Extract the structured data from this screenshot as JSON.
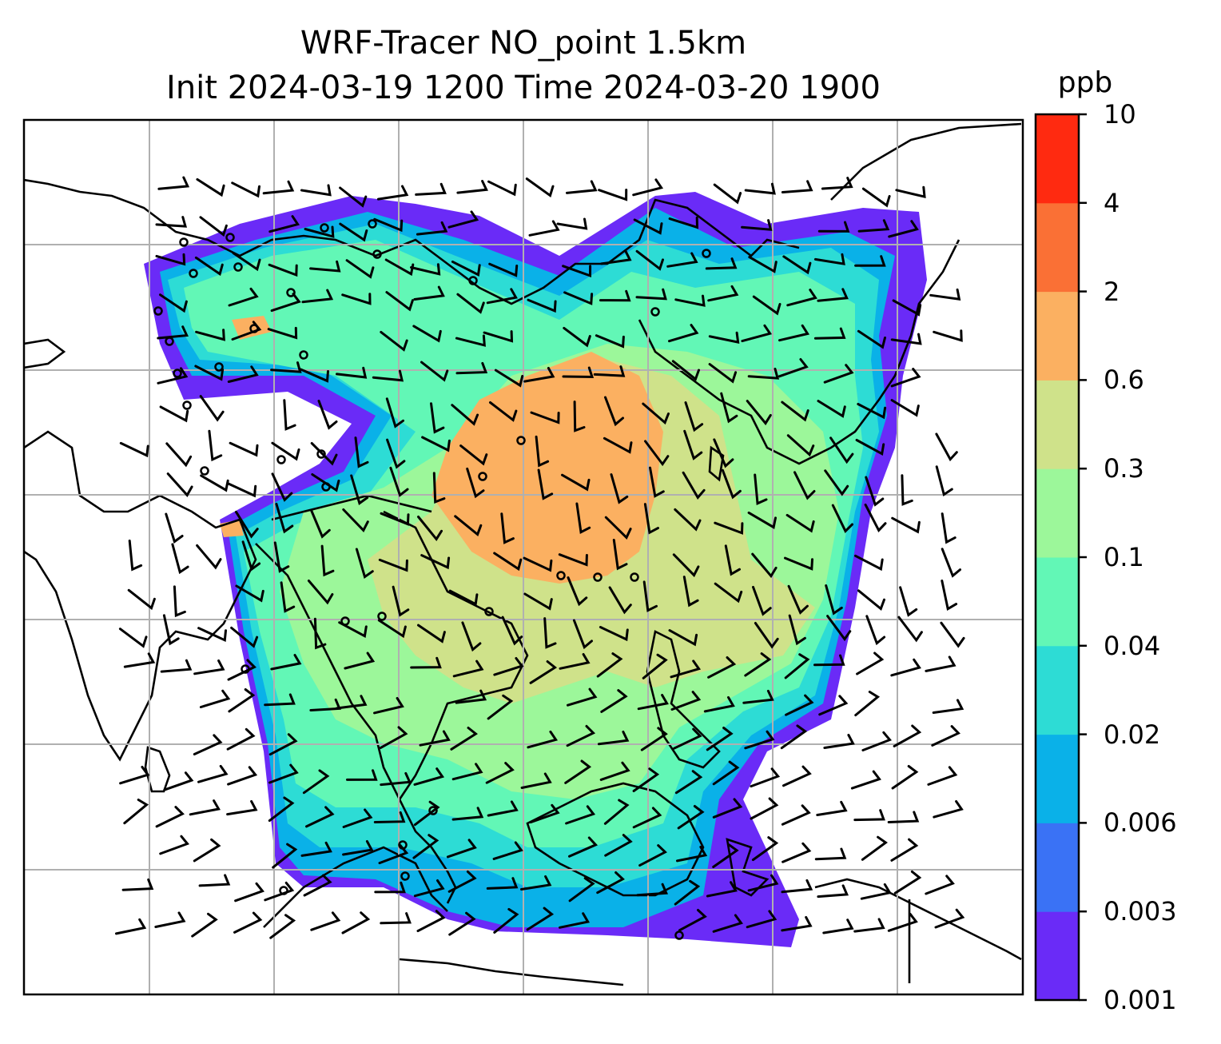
{
  "title_line1": "WRF-Tracer NO_point 1.5km",
  "title_line2": "Init 2024-03-19 1200 Time 2024-03-20 1900",
  "colorbar": {
    "unit": "ppb",
    "levels": [
      "0.001",
      "0.003",
      "0.006",
      "0.02",
      "0.04",
      "0.1",
      "0.3",
      "0.6",
      "2",
      "4",
      "10"
    ],
    "colors": [
      "#6a2bf7",
      "#3a72f5",
      "#0ab1e8",
      "#2ddcd5",
      "#62f7b6",
      "#9cf79a",
      "#cfe28a",
      "#fbb061",
      "#fa7035",
      "#ff2a10"
    ]
  },
  "map": {
    "gridlines": true,
    "features": [
      "coastlines",
      "country-borders",
      "wind-barbs",
      "tracer-concentration-field",
      "calm-wind-circles"
    ]
  }
}
